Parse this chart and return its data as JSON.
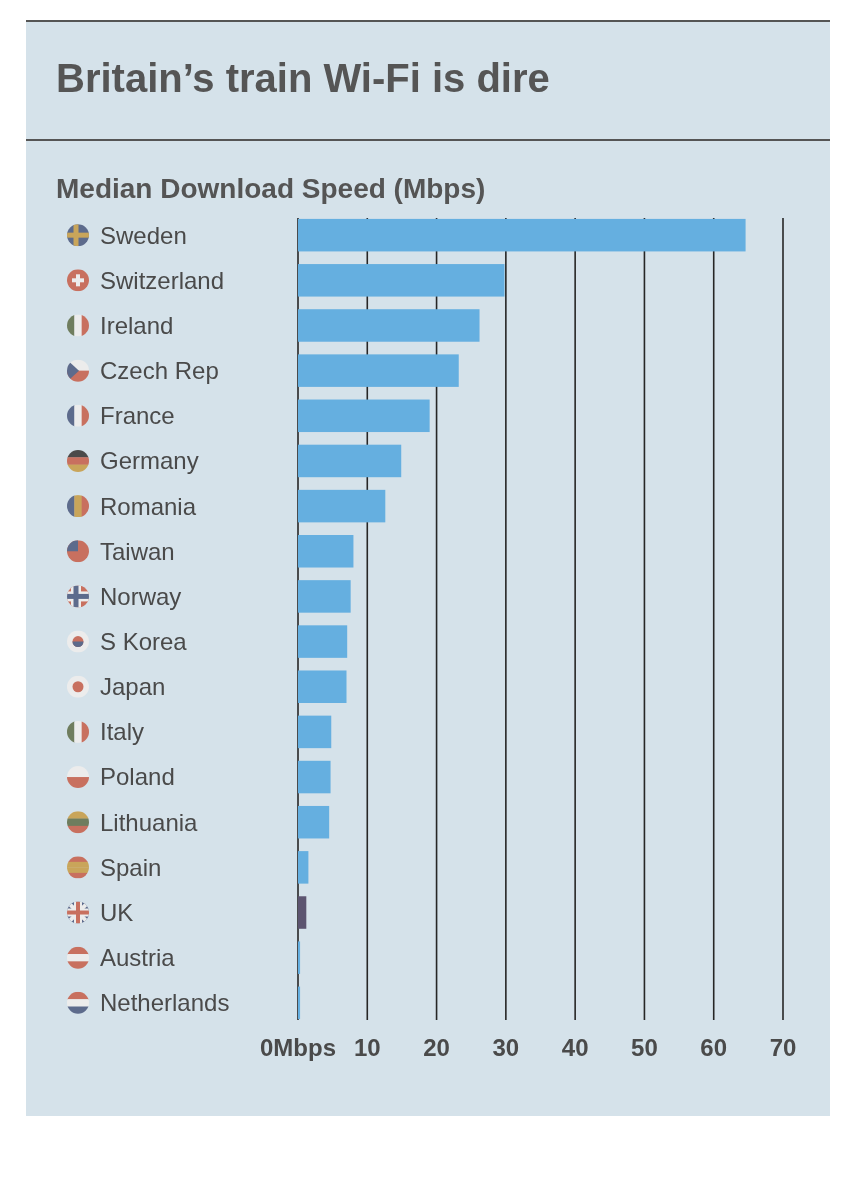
{
  "chart_data": {
    "type": "bar",
    "orientation": "horizontal",
    "title": "Britain’s train Wi-Fi is dire",
    "subtitle": "Median Download Speed (Mbps)",
    "categories": [
      "Sweden",
      "Switzerland",
      "Ireland",
      "Czech Rep",
      "France",
      "Germany",
      "Romania",
      "Taiwan",
      "Norway",
      "S Korea",
      "Japan",
      "Italy",
      "Poland",
      "Lithuania",
      "Spain",
      "UK",
      "Austria",
      "Netherlands"
    ],
    "values": [
      64.6,
      29.8,
      26.2,
      23.2,
      19,
      14.9,
      12.6,
      8,
      7.6,
      7.1,
      7,
      4.8,
      4.7,
      4.5,
      1.5,
      1.2,
      0.3,
      0.3
    ],
    "colors": [
      "#65afe0",
      "#65afe0",
      "#65afe0",
      "#65afe0",
      "#65afe0",
      "#65afe0",
      "#65afe0",
      "#65afe0",
      "#65afe0",
      "#65afe0",
      "#65afe0",
      "#65afe0",
      "#65afe0",
      "#65afe0",
      "#65afe0",
      "#5c5470",
      "#65afe0",
      "#65afe0"
    ],
    "xlim": [
      0,
      70
    ],
    "xticks": [
      {
        "value": 0,
        "label": "0Mbps"
      },
      10,
      20,
      30,
      40,
      50,
      60,
      70
    ],
    "grid": "x"
  }
}
